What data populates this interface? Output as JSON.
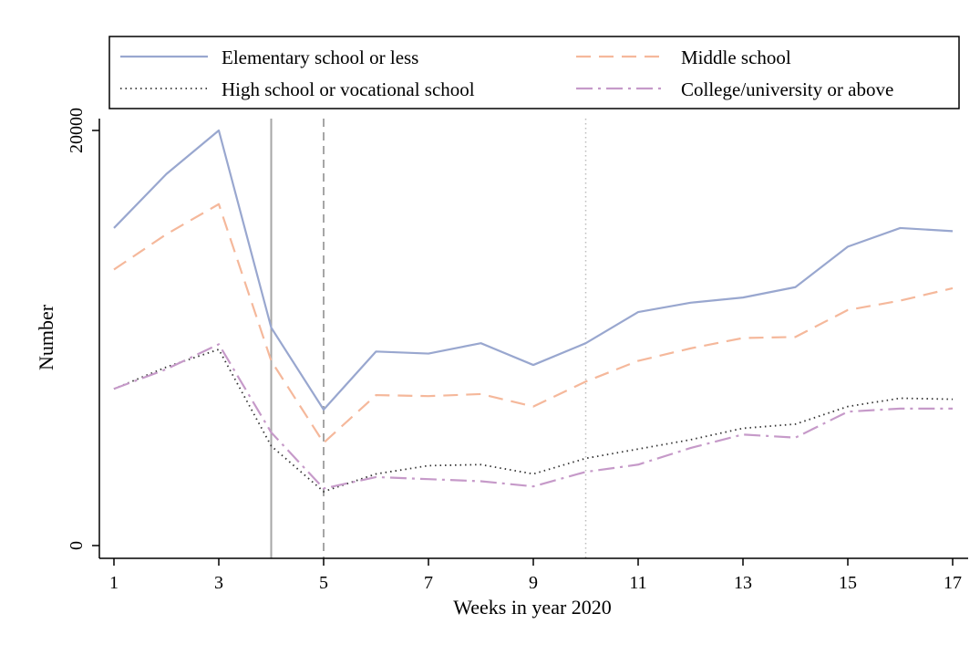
{
  "chart_data": {
    "type": "line",
    "xlabel": "Weeks in year 2020",
    "ylabel": "Number",
    "xlim": [
      1,
      17
    ],
    "ylim": [
      0,
      20000
    ],
    "x_ticks": [
      1,
      3,
      5,
      7,
      9,
      11,
      13,
      15,
      17
    ],
    "y_ticks": [
      0,
      20000
    ],
    "grid": false,
    "legend_position": "top",
    "x": [
      1,
      2,
      3,
      4,
      5,
      6,
      7,
      8,
      9,
      10,
      11,
      12,
      13,
      14,
      15,
      16,
      17
    ],
    "series": [
      {
        "name": "Elementary school or less",
        "color": "#99a7cf",
        "style": "solid",
        "values": [
          15300,
          17900,
          20000,
          10500,
          6550,
          9350,
          9250,
          9750,
          8700,
          9750,
          11250,
          11700,
          11950,
          12450,
          14400,
          15300,
          15150
        ]
      },
      {
        "name": "Middle school",
        "color": "#f5b89b",
        "style": "dash",
        "values": [
          13300,
          15000,
          16450,
          8900,
          4950,
          7250,
          7200,
          7300,
          6700,
          7900,
          8900,
          9500,
          10000,
          10050,
          11350,
          11800,
          12400
        ]
      },
      {
        "name": "High school or vocational school",
        "color": "#333333",
        "style": "dot",
        "values": [
          7550,
          8600,
          9450,
          4800,
          2600,
          3450,
          3850,
          3900,
          3450,
          4200,
          4650,
          5100,
          5650,
          5850,
          6700,
          7100,
          7050
        ]
      },
      {
        "name": "College/university or above",
        "color": "#c69ac9",
        "style": "dashdot",
        "values": [
          7550,
          8500,
          9700,
          5450,
          2750,
          3300,
          3200,
          3100,
          2850,
          3550,
          3900,
          4700,
          5350,
          5200,
          6450,
          6600,
          6600
        ]
      }
    ],
    "reference_lines": [
      {
        "x": 4,
        "style": "solid",
        "color": "#a6a6a6"
      },
      {
        "x": 5,
        "style": "dash",
        "color": "#a6a6a6"
      },
      {
        "x": 10,
        "style": "dot",
        "color": "#bdbdbd"
      }
    ]
  }
}
